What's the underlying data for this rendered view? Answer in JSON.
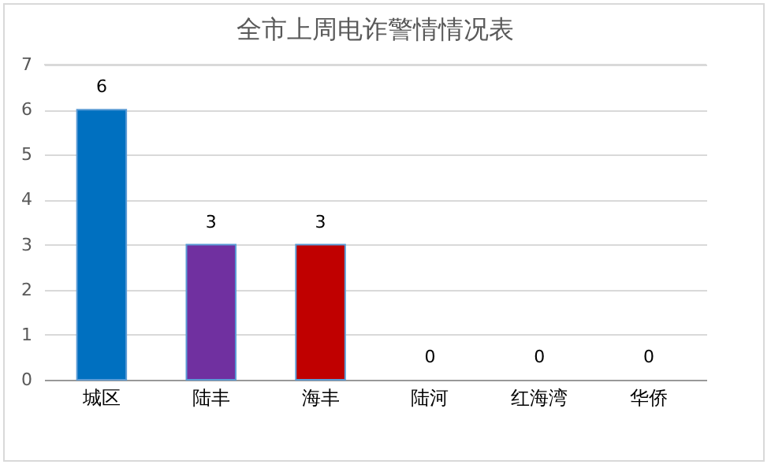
{
  "chart_data": {
    "type": "bar",
    "title": "全市上周电诈警情情况表",
    "categories": [
      "城区",
      "陆丰",
      "海丰",
      "陆河",
      "红海湾",
      "华侨"
    ],
    "values": [
      6,
      3,
      3,
      0,
      0,
      0
    ],
    "colors": [
      "#0070c0",
      "#7030a0",
      "#c00000",
      "#0070c0",
      "#0070c0",
      "#0070c0"
    ],
    "ylim": [
      0,
      7
    ],
    "yticks": [
      0,
      1,
      2,
      3,
      4,
      5,
      6,
      7
    ],
    "grid": "y",
    "data_labels": true
  }
}
